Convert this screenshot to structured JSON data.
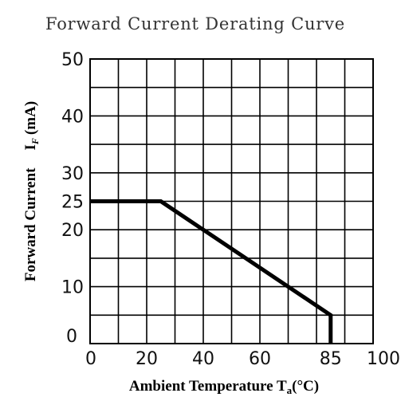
{
  "chart_data": {
    "type": "line",
    "title": "Forward Current Derating Curve",
    "xlabel": {
      "main": "Ambient Temperature T",
      "subscript": "a",
      "unit": "(°C)"
    },
    "ylabel": {
      "main": "Forward Current",
      "symbol": "I",
      "subscript": "F",
      "unit": "(mA)"
    },
    "xlim": [
      0,
      100
    ],
    "ylim": [
      0,
      50
    ],
    "grid": true,
    "x_ticks": [
      {
        "value": 0,
        "label": "0"
      },
      {
        "value": 20,
        "label": "20"
      },
      {
        "value": 40,
        "label": "40"
      },
      {
        "value": 60,
        "label": "60"
      },
      {
        "value": 85,
        "label": "85"
      },
      {
        "value": 100,
        "label": "100"
      }
    ],
    "y_ticks": [
      {
        "value": 0,
        "label": "0"
      },
      {
        "value": 10,
        "label": "10"
      },
      {
        "value": 20,
        "label": "20"
      },
      {
        "value": 25,
        "label": "25"
      },
      {
        "value": 30,
        "label": "30"
      },
      {
        "value": 40,
        "label": "40"
      },
      {
        "value": 50,
        "label": "50"
      }
    ],
    "x_grid": [
      0,
      10,
      20,
      30,
      40,
      50,
      60,
      70,
      80,
      90,
      100
    ],
    "y_grid": [
      0,
      5,
      10,
      15,
      20,
      25,
      30,
      35,
      40,
      45,
      50
    ],
    "series": [
      {
        "x": [
          0,
          25,
          85,
          85
        ],
        "y": [
          25,
          25,
          5,
          0
        ]
      }
    ]
  }
}
